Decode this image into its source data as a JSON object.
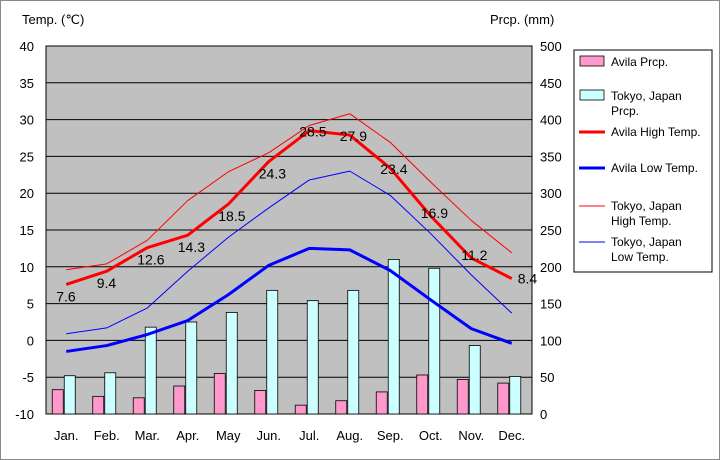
{
  "chart_data": {
    "type": "bar+line",
    "ylabel_left": "Temp. (℃)",
    "ylabel_right": "Prcp. (mm)",
    "categories": [
      "Jan.",
      "Feb.",
      "Mar.",
      "Apr.",
      "May",
      "Jun.",
      "Jul.",
      "Aug.",
      "Sep.",
      "Oct.",
      "Nov.",
      "Dec."
    ],
    "ylim_left": [
      -10,
      40
    ],
    "ylim_right": [
      0,
      500
    ],
    "yticks_left": [
      "40",
      "35",
      "30",
      "25",
      "20",
      "15",
      "10",
      "5",
      "0",
      "-5",
      "-10"
    ],
    "yticks_right": [
      "500",
      "450",
      "400",
      "350",
      "300",
      "250",
      "200",
      "150",
      "100",
      "50",
      "0"
    ],
    "bar_series": [
      {
        "name": "Avila Prcp.",
        "color": "#ff99cc",
        "values": [
          33,
          24,
          22,
          38,
          55,
          32,
          12,
          18,
          30,
          53,
          47,
          42
        ]
      },
      {
        "name": "Tokyo, Japan Prcp.",
        "color": "#ccffff",
        "values": [
          52,
          56,
          118,
          125,
          138,
          168,
          154,
          168,
          210,
          198,
          93,
          51
        ]
      }
    ],
    "line_series": [
      {
        "name": "Avila High Temp.",
        "color": "#ff0000",
        "width": 3,
        "values": [
          7.6,
          9.4,
          12.6,
          14.3,
          18.5,
          24.3,
          28.5,
          27.9,
          23.4,
          16.9,
          11.2,
          8.4
        ],
        "labels": [
          "7.6",
          "9.4",
          "12.6",
          "14.3",
          "18.5",
          "24.3",
          "28.5",
          "27.9",
          "23.4",
          "16.9",
          "11.2",
          "8.4"
        ]
      },
      {
        "name": "Avila Low Temp.",
        "color": "#0000ff",
        "width": 3,
        "values": [
          -1.5,
          -0.7,
          0.8,
          2.7,
          6.2,
          10.2,
          12.5,
          12.3,
          9.5,
          5.5,
          1.6,
          -0.4
        ]
      },
      {
        "name": "Tokyo, Japan High Temp.",
        "color": "#ff0000",
        "width": 1,
        "values": [
          9.6,
          10.4,
          13.6,
          19.0,
          22.9,
          25.5,
          29.2,
          30.8,
          26.9,
          21.5,
          16.3,
          11.9
        ]
      },
      {
        "name": "Tokyo, Japan Low Temp.",
        "color": "#0000ff",
        "width": 1,
        "values": [
          0.9,
          1.7,
          4.4,
          9.4,
          14.0,
          18.0,
          21.8,
          23.0,
          19.7,
          14.5,
          8.9,
          3.7
        ]
      }
    ],
    "legend": [
      {
        "label": "Avila Prcp.",
        "kind": "bar",
        "color": "#ff99cc"
      },
      {
        "label": "Tokyo, Japan Prcp.",
        "kind": "bar",
        "color": "#ccffff"
      },
      {
        "label": "Avila High Temp.",
        "kind": "line",
        "color": "#ff0000",
        "width": 3
      },
      {
        "label": "Avila Low Temp.",
        "kind": "line",
        "color": "#0000ff",
        "width": 3
      },
      {
        "label": "Tokyo, Japan High Temp.",
        "kind": "line",
        "color": "#ff0000",
        "width": 1
      },
      {
        "label": "Tokyo, Japan Low Temp.",
        "kind": "line",
        "color": "#0000ff",
        "width": 1
      }
    ],
    "legend_position": "right",
    "plot_background": "#c0c0c0",
    "grid": true
  }
}
